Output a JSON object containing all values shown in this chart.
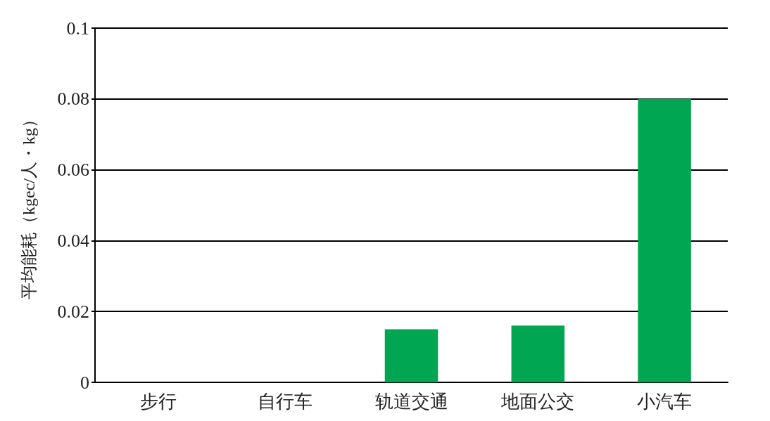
{
  "chart_data": {
    "type": "bar",
    "ylabel": "平均能耗（kgec/人・kg）",
    "categories": [
      "步行",
      "自行车",
      "轨道交通",
      "地面公交",
      "小汽车"
    ],
    "values": [
      0,
      0,
      0.015,
      0.016,
      0.08
    ],
    "color": "#00a651",
    "ylim": [
      0,
      0.1
    ],
    "yticks": [
      0,
      0.02,
      0.04,
      0.06,
      0.08,
      0.1
    ],
    "grid": "y"
  }
}
